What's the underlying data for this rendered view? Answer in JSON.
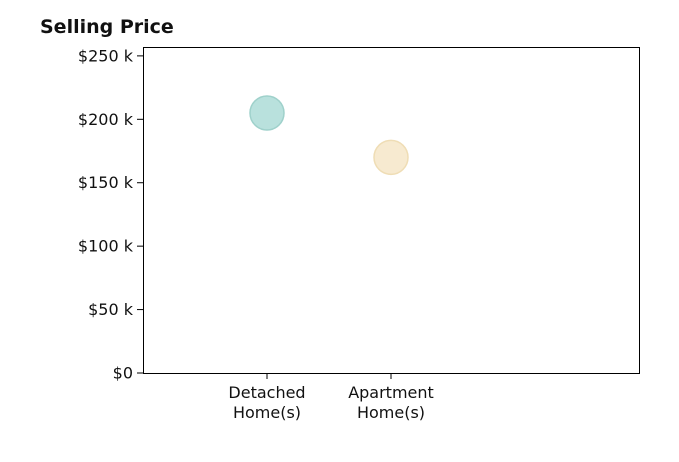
{
  "chart_data": {
    "type": "scatter",
    "title": "Selling Price",
    "xlabel": "",
    "ylabel": "",
    "categories": [
      [
        "Detached",
        "Home(s)"
      ],
      [
        "Apartment",
        "Home(s)"
      ]
    ],
    "values": [
      205000,
      170000
    ],
    "colors": [
      "#b9e1dd",
      "#f7ead0"
    ],
    "edge_colors": [
      "#9fd1cb",
      "#efddb5"
    ],
    "ylim": [
      0,
      257000
    ],
    "yticks": [
      0,
      50000,
      100000,
      150000,
      200000,
      250000
    ],
    "ytick_labels": [
      "$0",
      "$50 k",
      "$100 k",
      "$150 k",
      "$200 k",
      "$250 k"
    ],
    "grid": false,
    "legend": "none"
  }
}
